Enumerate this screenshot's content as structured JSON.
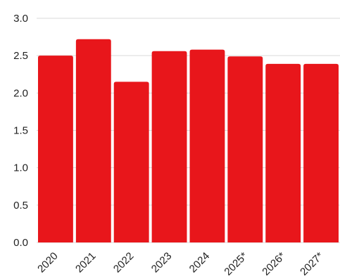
{
  "chart_data": {
    "type": "bar",
    "title": "",
    "xlabel": "",
    "ylabel": "",
    "categories": [
      "2020",
      "2021",
      "2022",
      "2023",
      "2024",
      "2025*",
      "2026*",
      "2027*"
    ],
    "values": [
      2.5,
      2.72,
      2.15,
      2.56,
      2.58,
      2.49,
      2.39,
      2.39
    ],
    "ylim": [
      0,
      3
    ],
    "yticks": [
      "0.0",
      "0.5",
      "1.0",
      "1.5",
      "2.0",
      "2.5",
      "3.0"
    ],
    "grid": true,
    "bar_color": "#e8161b",
    "grid_color": "#d9d9d9"
  }
}
